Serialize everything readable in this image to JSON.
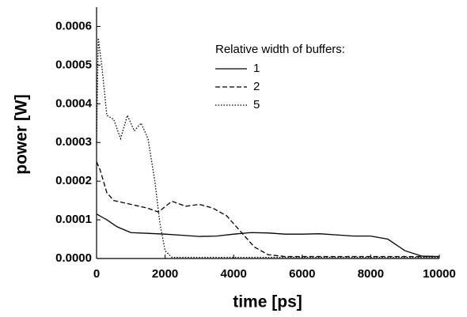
{
  "chart_data": {
    "type": "line",
    "x_label": "time [ps]",
    "y_label": "power [W]",
    "legend_title": "Relative width of buffers:",
    "legend_position": "upper-right",
    "grid": false,
    "xlim": [
      0,
      10000
    ],
    "xticks": [
      0,
      2000,
      4000,
      6000,
      8000,
      10000
    ],
    "ylim": [
      0,
      0.00065
    ],
    "yticks": [
      {
        "value": 0,
        "label": "0.0000"
      },
      {
        "value": 0.0001,
        "label": "0.0001"
      },
      {
        "value": 0.0002,
        "label": "0.0002"
      },
      {
        "value": 0.0003,
        "label": "0.0003"
      },
      {
        "value": 0.0004,
        "label": "0.0004"
      },
      {
        "value": 0.0005,
        "label": "0.0005"
      },
      {
        "value": 0.0006,
        "label": "0.0006"
      }
    ],
    "series": [
      {
        "name": "1",
        "color": "#000000",
        "dash": "solid",
        "x": [
          0,
          300,
          600,
          1000,
          1500,
          2000,
          2500,
          3000,
          3500,
          4000,
          4500,
          5000,
          5500,
          6000,
          6500,
          7000,
          7500,
          8000,
          8500,
          9000,
          9500,
          10000
        ],
        "values": [
          0.000115,
          0.0001,
          8.2e-05,
          6.7e-05,
          6.5e-05,
          6.3e-05,
          6e-05,
          5.7e-05,
          5.8e-05,
          6.3e-05,
          6.7e-05,
          6.6e-05,
          6.3e-05,
          6.3e-05,
          6.4e-05,
          6.1e-05,
          5.8e-05,
          5.8e-05,
          5e-05,
          2e-05,
          6e-06,
          5e-06
        ]
      },
      {
        "name": "2",
        "color": "#000000",
        "dash": "dashed",
        "x": [
          0,
          100,
          300,
          500,
          1000,
          1500,
          1800,
          2200,
          2600,
          3000,
          3400,
          3800,
          4200,
          4600,
          5000,
          5500,
          6000,
          7000,
          8000,
          9000,
          10000
        ],
        "values": [
          0.00025,
          0.00023,
          0.00017,
          0.00015,
          0.00014,
          0.00013,
          0.00012,
          0.000148,
          0.000135,
          0.00014,
          0.00013,
          0.00011,
          7e-05,
          3e-05,
          1e-05,
          5e-06,
          5e-06,
          5e-06,
          5e-06,
          5e-06,
          5e-06
        ]
      },
      {
        "name": "5",
        "color": "#000000",
        "dash": "dotted",
        "x": [
          0,
          50,
          150,
          300,
          500,
          700,
          900,
          1100,
          1300,
          1500,
          1700,
          1850,
          2000,
          2200,
          3000,
          4000,
          5000,
          6000,
          7000,
          8000,
          9000,
          10000
        ],
        "values": [
          0.0003,
          0.00057,
          0.0005,
          0.00037,
          0.00036,
          0.00031,
          0.00037,
          0.00033,
          0.00035,
          0.00031,
          0.0002,
          9e-05,
          2e-05,
          3e-06,
          3e-06,
          3e-06,
          3e-06,
          3e-06,
          3e-06,
          3e-06,
          3e-06,
          3e-06
        ]
      }
    ]
  }
}
